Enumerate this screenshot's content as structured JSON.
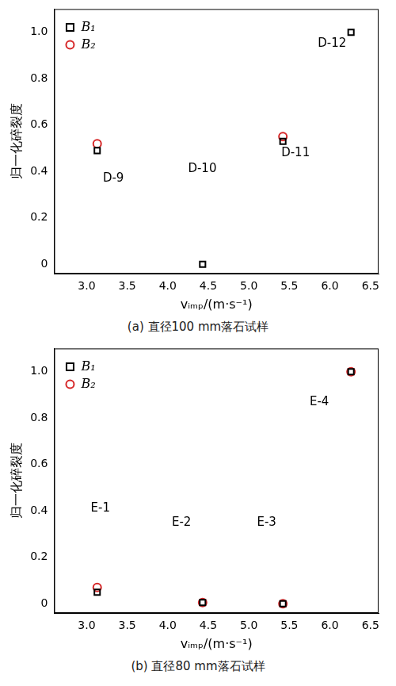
{
  "chart_data": [
    {
      "type": "scatter",
      "title": "(a) 直径100 mm落石试样",
      "x_label": "vᵢₘₚ/(m·s⁻¹)",
      "y_label": "归一化碎裂度",
      "series": [
        {
          "name": "B₁",
          "color": "#000000",
          "marker": "square",
          "x": [
            3.13,
            4.43,
            5.42,
            6.26
          ],
          "values": [
            0.49,
            0.0,
            0.53,
            1.0
          ]
        },
        {
          "name": "B₂",
          "color": "#d62728",
          "marker": "circle",
          "x": [
            3.13,
            4.43,
            5.42,
            6.26
          ],
          "values": [
            0.52,
            null,
            0.55,
            null
          ]
        }
      ],
      "annotations": [
        {
          "text": "D-9",
          "x": 3.2,
          "y": 0.37
        },
        {
          "text": "D-10",
          "x": 4.25,
          "y": 0.41
        },
        {
          "text": "D-11",
          "x": 5.4,
          "y": 0.48
        },
        {
          "text": "D-12",
          "x": 5.85,
          "y": 0.95
        }
      ],
      "xlim": [
        2.6,
        6.6
      ],
      "xticks": [
        {
          "value": 3,
          "label": "3.0"
        },
        3.5,
        {
          "value": 4,
          "label": "4.0"
        },
        4.5,
        {
          "value": 5,
          "label": "5.0"
        },
        5.5,
        {
          "value": 6,
          "label": "6.0"
        },
        6.5
      ],
      "ylim": [
        -0.04,
        1.1
      ],
      "yticks": [
        0,
        0.2,
        0.4,
        0.6,
        0.8,
        {
          "value": 1,
          "label": "1.0"
        }
      ],
      "grid": false,
      "legend": "upper left"
    },
    {
      "type": "scatter",
      "title": "(b) 直径80 mm落石试样",
      "x_label": "vᵢₘₚ/(m·s⁻¹)",
      "y_label": "归一化碎裂度",
      "series": [
        {
          "name": "B₁",
          "color": "#000000",
          "marker": "square",
          "x": [
            3.13,
            4.43,
            5.42,
            6.26
          ],
          "values": [
            0.05,
            0.005,
            0.0,
            1.0
          ]
        },
        {
          "name": "B₂",
          "color": "#d62728",
          "marker": "circle",
          "x": [
            3.13,
            4.43,
            5.42,
            6.26
          ],
          "values": [
            0.07,
            0.005,
            0.0,
            1.0
          ]
        }
      ],
      "annotations": [
        {
          "text": "E-1",
          "x": 3.05,
          "y": 0.41
        },
        {
          "text": "E-2",
          "x": 4.05,
          "y": 0.35
        },
        {
          "text": "E-3",
          "x": 5.1,
          "y": 0.35
        },
        {
          "text": "E-4",
          "x": 5.75,
          "y": 0.87
        }
      ],
      "xlim": [
        2.6,
        6.6
      ],
      "xticks": [
        {
          "value": 3,
          "label": "3.0"
        },
        3.5,
        {
          "value": 4,
          "label": "4.0"
        },
        4.5,
        {
          "value": 5,
          "label": "5.0"
        },
        5.5,
        {
          "value": 6,
          "label": "6.0"
        },
        6.5
      ],
      "ylim": [
        -0.04,
        1.1
      ],
      "yticks": [
        0,
        0.2,
        0.4,
        0.6,
        0.8,
        {
          "value": 1,
          "label": "1.0"
        }
      ],
      "grid": false,
      "legend": "upper left"
    }
  ]
}
